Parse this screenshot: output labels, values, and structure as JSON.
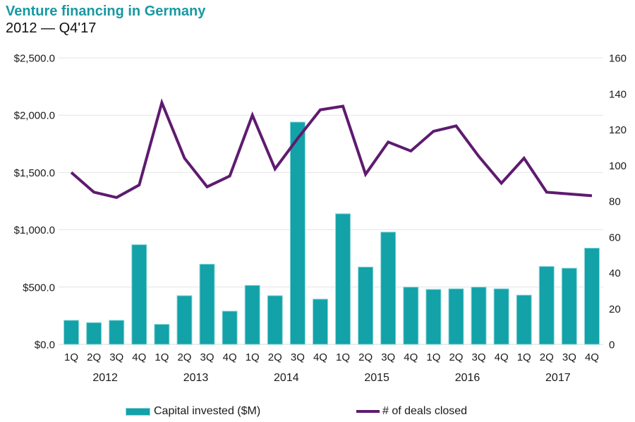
{
  "header": {
    "title": "Venture financing in Germany",
    "subtitle": "2012 — Q4'17"
  },
  "legend": {
    "bars_label": "Capital invested ($M)",
    "line_label": "# of deals closed"
  },
  "colors": {
    "title_teal": "#1898a2",
    "bar_teal": "#12a2a8",
    "bar_border": "#8fd7da",
    "line_purple": "#5e1b6f",
    "grid": "#e4e4e4",
    "baseline": "#d8d8d8",
    "axis_text": "#1a1a1a"
  },
  "chart_data": {
    "type": "bar+line dual-axis",
    "title": "Venture financing in Germany",
    "subtitle": "2012 — Q4'17",
    "x_quarter_labels": [
      "1Q",
      "2Q",
      "3Q",
      "4Q",
      "1Q",
      "2Q",
      "3Q",
      "4Q",
      "1Q",
      "2Q",
      "3Q",
      "4Q",
      "1Q",
      "2Q",
      "3Q",
      "4Q",
      "1Q",
      "2Q",
      "3Q",
      "4Q",
      "1Q",
      "2Q",
      "3Q",
      "4Q"
    ],
    "years": [
      "2012",
      "2013",
      "2014",
      "2015",
      "2016",
      "2017"
    ],
    "series": [
      {
        "name": "Capital invested ($M)",
        "type": "bar",
        "axis": "left",
        "values": [
          210,
          190,
          210,
          870,
          175,
          425,
          700,
          290,
          515,
          425,
          1940,
          395,
          1140,
          675,
          980,
          500,
          480,
          485,
          500,
          485,
          430,
          680,
          665,
          840
        ]
      },
      {
        "name": "# of deals closed",
        "type": "line",
        "axis": "right",
        "values": [
          96,
          85,
          82,
          89,
          135,
          104,
          88,
          94,
          128,
          98,
          115,
          131,
          133,
          95,
          113,
          108,
          119,
          122,
          105,
          90,
          104,
          85,
          84,
          83
        ]
      }
    ],
    "left_axis": {
      "max": 2500,
      "min": 0,
      "ticks": [
        {
          "label": "$0.0",
          "value": 0
        },
        {
          "label": "$500.0",
          "value": 500
        },
        {
          "label": "$1,000.0",
          "value": 1000
        },
        {
          "label": "$1,500.0",
          "value": 1500
        },
        {
          "label": "$2,000.0",
          "value": 2000
        },
        {
          "label": "$2,500.0",
          "value": 2500
        }
      ]
    },
    "right_axis": {
      "max": 160,
      "min": 0,
      "ticks": [
        {
          "label": "0",
          "value": 0
        },
        {
          "label": "20",
          "value": 20
        },
        {
          "label": "40",
          "value": 40
        },
        {
          "label": "60",
          "value": 60
        },
        {
          "label": "80",
          "value": 80
        },
        {
          "label": "100",
          "value": 100
        },
        {
          "label": "120",
          "value": 120
        },
        {
          "label": "140",
          "value": 140
        },
        {
          "label": "160",
          "value": 160
        }
      ]
    },
    "grid": "horizontal gridlines at left-axis ticks",
    "legend_position": "bottom"
  }
}
